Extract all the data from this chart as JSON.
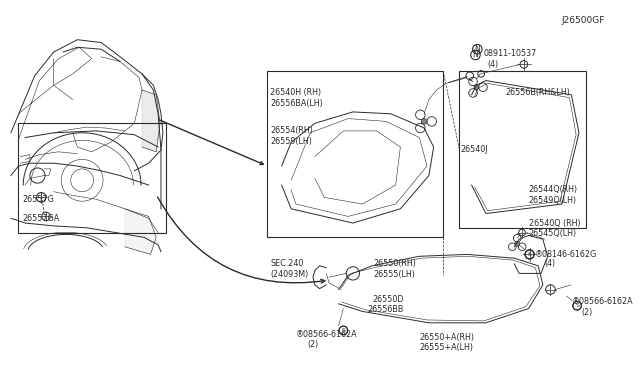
{
  "bg_color": "#ffffff",
  "line_color": "#2a2a2a",
  "figsize": [
    6.4,
    3.72
  ],
  "dpi": 100,
  "lw_main": 0.7,
  "lw_thin": 0.4,
  "labels": {
    "bolt_08911": [
      "N⊘08911-10537",
      "(4)"
    ],
    "main_box_top": [
      "26540H (RH)",
      "26556BA(LH)"
    ],
    "main_box_mid": [
      "26554(RH)",
      "26559(LH)"
    ],
    "side_box_connector": "26556B(RH&LH)",
    "side_box_lamp": "26540J",
    "side_box_lens_rh": "26544Q(RH)",
    "side_box_lens_lh": "26549Q(LH)",
    "right_part_rh": "26540Q (RH)",
    "right_part_lh": "26545Q(LH)",
    "bolt_08146": [
      "®08146-6162G",
      "(4)"
    ],
    "sec240": [
      "SEC.240",
      "(24093M)"
    ],
    "bottom_main_rh": "26550(RH)",
    "bottom_main_lh": "26555(LH)",
    "bottom_lamp_d": "26550D",
    "bottom_lamp_bb": "26556BB",
    "bolt_08566_left": [
      "®08566-6162A",
      "(2)"
    ],
    "bottom_a_rh": "26550+A(RH)",
    "bottom_a_lh": "26555+A(LH)",
    "bolt_08566_right": [
      "®08566-6162A",
      "(2)"
    ],
    "inset_g": "26557G",
    "inset_ga": "26557GA",
    "diagram_id": "J26500GF"
  }
}
